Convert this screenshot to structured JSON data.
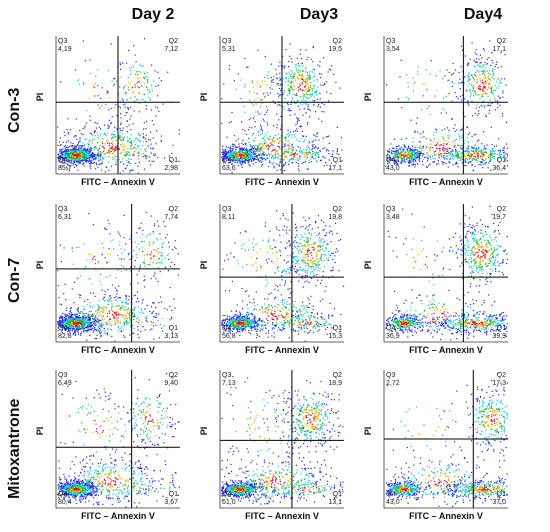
{
  "columns": [
    "Day 2",
    "Day3",
    "Day4"
  ],
  "rows": [
    "Con-3",
    "Con-7",
    "Mitoxantrone"
  ],
  "chart_data": {
    "type": "scatter",
    "subtype": "flow-cytometry-quadrant-density-plot",
    "xlabel": "FITC – Annexin V",
    "ylabel": "PI",
    "panels": [
      {
        "row": "Con-3",
        "col": "Day 2",
        "Q3": "4,19",
        "Q2": "7,12",
        "Q4": "85,7",
        "Q1": "2,98",
        "gate": [
          0.5,
          0.48
        ]
      },
      {
        "row": "Con-3",
        "col": "Day3",
        "Q3": "5,31",
        "Q2": "19,5",
        "Q4": "63,6",
        "Q1": "17,1",
        "gate": [
          0.5,
          0.48
        ]
      },
      {
        "row": "Con-3",
        "col": "Day4",
        "Q3": "3,54",
        "Q2": "17,1",
        "Q4": "43,0",
        "Q1": "36,4",
        "gate": [
          0.64,
          0.48
        ]
      },
      {
        "row": "Con-7",
        "col": "Day 2",
        "Q3": "6,31",
        "Q2": "7,74",
        "Q4": "82,8",
        "Q1": "3,13",
        "gate": [
          0.61,
          0.47
        ]
      },
      {
        "row": "Con-7",
        "col": "Day3",
        "Q3": "8,11",
        "Q2": "19,8",
        "Q4": "56,8",
        "Q1": "15,3",
        "gate": [
          0.58,
          0.53
        ]
      },
      {
        "row": "Con-7",
        "col": "Day4",
        "Q3": "3,48",
        "Q2": "19,7",
        "Q4": "36,9",
        "Q1": "39,9",
        "gate": [
          0.64,
          0.53
        ]
      },
      {
        "row": "Mitoxantrone",
        "col": "Day 2",
        "Q3": "6,49",
        "Q2": "9,40",
        "Q4": "80,4",
        "Q1": "3,67",
        "gate": [
          0.61,
          0.56
        ]
      },
      {
        "row": "Mitoxantrone",
        "col": "Day3",
        "Q3": "7,13",
        "Q2": "18,9",
        "Q4": "61,0",
        "Q1": "13,1",
        "gate": [
          0.58,
          0.51
        ]
      },
      {
        "row": "Mitoxantrone",
        "col": "Day4",
        "Q3": "2,72",
        "Q2": "17,3",
        "Q4": "43,0",
        "Q1": "37,0",
        "gate": [
          0.72,
          0.5
        ]
      }
    ]
  }
}
